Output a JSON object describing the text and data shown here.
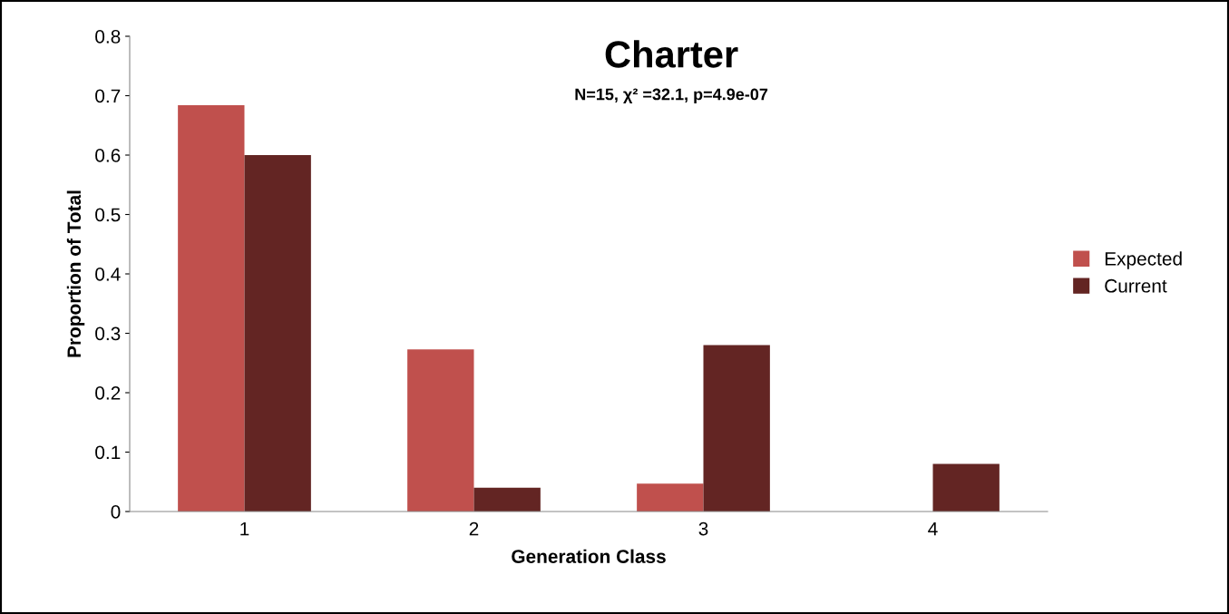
{
  "chart_data": {
    "type": "bar",
    "title": "Charter",
    "subtitle": "N=15, χ² =32.1, p=4.9e-07",
    "xlabel": "Generation Class",
    "ylabel": "Proportion of Total",
    "categories": [
      "1",
      "2",
      "3",
      "4"
    ],
    "series": [
      {
        "name": "Expected",
        "color": "#c0504d",
        "values": [
          0.684,
          0.273,
          0.047,
          0
        ]
      },
      {
        "name": "Current",
        "color": "#632523",
        "values": [
          0.6,
          0.04,
          0.28,
          0.08
        ]
      }
    ],
    "ylim": [
      0,
      0.8
    ],
    "yticks": [
      0,
      0.1,
      0.2,
      0.3,
      0.4,
      0.5,
      0.6,
      0.7,
      0.8
    ],
    "grid": false,
    "legend": "right"
  }
}
